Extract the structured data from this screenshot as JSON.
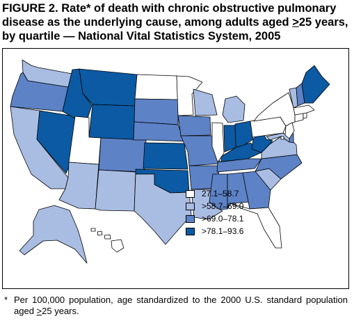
{
  "title": "FIGURE 2. Rate* of death with chronic obstructive pulmonary disease as the underlying cause, among adults aged ≥25 years, by quartile — National Vital Statistics System, 2005",
  "title_lines": [
    "FIGURE 2. Rate* of death with chronic obstructive pulmonary",
    "disease as the underlying cause, among adults aged >25 years,",
    "by quartile — National Vital Statistics System, 2005"
  ],
  "legend": [
    {
      "label": "27.1–58.7",
      "color": "#ffffff"
    },
    {
      "label": ">58.7–69.0",
      "color": "#a9bde3"
    },
    {
      "label": ">69.0–78.1",
      "color": "#5d82c6"
    },
    {
      "label": ">78.1–93.6",
      "color": "#0b5aa3"
    }
  ],
  "footnote": {
    "marker": "*",
    "text": "Per 100,000 population, age standardized to the 2000 U.S. standard population aged >25 years."
  },
  "map_data": {
    "quartile_1": [
      "ND",
      "MN",
      "UT",
      "IL",
      "NY",
      "PA",
      "NJ",
      "CT",
      "MA",
      "RI",
      "FL",
      "HI",
      "DC"
    ],
    "quartile_2": [
      "WA",
      "CA",
      "AZ",
      "NM",
      "TX",
      "WI",
      "MI",
      "LA",
      "SC",
      "MD",
      "VA",
      "AK",
      "VT"
    ],
    "quartile_3": [
      "OR",
      "SD",
      "NE",
      "CO",
      "IA",
      "MO",
      "AR",
      "MS",
      "AL",
      "GA",
      "NC",
      "TN",
      "DE",
      "NH"
    ],
    "quartile_4": [
      "NV",
      "ID",
      "MT",
      "WY",
      "KS",
      "OK",
      "IN",
      "OH",
      "KY",
      "WV",
      "ME"
    ]
  }
}
